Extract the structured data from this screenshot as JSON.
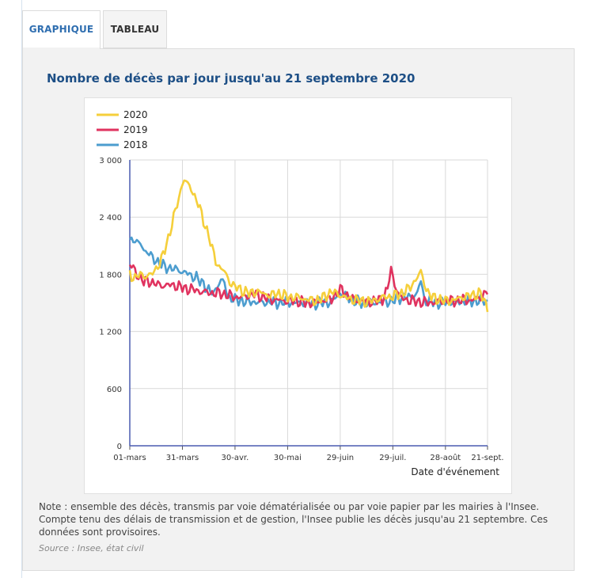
{
  "tabs": [
    {
      "label": "GRAPHIQUE",
      "active": true
    },
    {
      "label": "TABLEAU",
      "active": false
    }
  ],
  "note": "Note : ensemble des décès, transmis par voie dématérialisée ou par voie papier par les mairies à l'Insee. Compte tenu des délais de transmission et de gestion, l'Insee publie les décès jusqu'au 21 septembre. Ces données sont provisoires.",
  "source": "Source : Insee, état civil",
  "chart_data": {
    "type": "line",
    "title": "Nombre de décès par jour jusqu'au 21 septembre 2020",
    "xlabel": "Date d'événement",
    "ylabel": "",
    "ylim": [
      0,
      3000
    ],
    "yticks": [
      0,
      600,
      1200,
      1800,
      2400,
      3000
    ],
    "ytick_labels": [
      "0",
      "600",
      "1 200",
      "1 800",
      "2 400",
      "3 000"
    ],
    "x_day_range": [
      0,
      204
    ],
    "xticks": [
      {
        "day": 0,
        "label": "01-mars"
      },
      {
        "day": 30,
        "label": "31-mars"
      },
      {
        "day": 60,
        "label": "30-avr."
      },
      {
        "day": 90,
        "label": "30-mai"
      },
      {
        "day": 120,
        "label": "29-juin"
      },
      {
        "day": 150,
        "label": "29-juil."
      },
      {
        "day": 180,
        "label": "28-août"
      },
      {
        "day": 204,
        "label": "21-sept."
      }
    ],
    "legend_position": "top-left",
    "series": [
      {
        "name": "2020",
        "color": "#f5cf3b",
        "points": [
          [
            0,
            1800
          ],
          [
            3,
            1760
          ],
          [
            6,
            1800
          ],
          [
            9,
            1780
          ],
          [
            12,
            1790
          ],
          [
            15,
            1860
          ],
          [
            18,
            1950
          ],
          [
            20,
            2060
          ],
          [
            22,
            2180
          ],
          [
            24,
            2330
          ],
          [
            26,
            2460
          ],
          [
            28,
            2600
          ],
          [
            30,
            2760
          ],
          [
            31,
            2800
          ],
          [
            33,
            2740
          ],
          [
            35,
            2700
          ],
          [
            37,
            2620
          ],
          [
            39,
            2540
          ],
          [
            41,
            2420
          ],
          [
            43,
            2310
          ],
          [
            45,
            2210
          ],
          [
            47,
            2060
          ],
          [
            49,
            1940
          ],
          [
            51,
            1880
          ],
          [
            53,
            1850
          ],
          [
            55,
            1790
          ],
          [
            57,
            1720
          ],
          [
            60,
            1670
          ],
          [
            64,
            1630
          ],
          [
            68,
            1600
          ],
          [
            72,
            1620
          ],
          [
            76,
            1600
          ],
          [
            80,
            1580
          ],
          [
            85,
            1600
          ],
          [
            90,
            1560
          ],
          [
            95,
            1560
          ],
          [
            100,
            1540
          ],
          [
            105,
            1520
          ],
          [
            110,
            1550
          ],
          [
            115,
            1620
          ],
          [
            120,
            1580
          ],
          [
            125,
            1540
          ],
          [
            130,
            1530
          ],
          [
            135,
            1510
          ],
          [
            140,
            1530
          ],
          [
            145,
            1560
          ],
          [
            150,
            1570
          ],
          [
            155,
            1600
          ],
          [
            160,
            1660
          ],
          [
            163,
            1750
          ],
          [
            166,
            1820
          ],
          [
            169,
            1650
          ],
          [
            172,
            1560
          ],
          [
            176,
            1540
          ],
          [
            180,
            1520
          ],
          [
            185,
            1530
          ],
          [
            190,
            1560
          ],
          [
            195,
            1580
          ],
          [
            200,
            1600
          ],
          [
            204,
            1450
          ]
        ]
      },
      {
        "name": "2019",
        "color": "#e0335f",
        "points": [
          [
            0,
            1900
          ],
          [
            2,
            1860
          ],
          [
            5,
            1780
          ],
          [
            8,
            1720
          ],
          [
            11,
            1730
          ],
          [
            14,
            1700
          ],
          [
            17,
            1690
          ],
          [
            20,
            1680
          ],
          [
            24,
            1690
          ],
          [
            28,
            1670
          ],
          [
            32,
            1650
          ],
          [
            36,
            1640
          ],
          [
            40,
            1620
          ],
          [
            44,
            1610
          ],
          [
            48,
            1600
          ],
          [
            52,
            1600
          ],
          [
            56,
            1580
          ],
          [
            60,
            1560
          ],
          [
            64,
            1560
          ],
          [
            68,
            1580
          ],
          [
            72,
            1590
          ],
          [
            76,
            1560
          ],
          [
            80,
            1540
          ],
          [
            85,
            1530
          ],
          [
            90,
            1520
          ],
          [
            95,
            1520
          ],
          [
            100,
            1500
          ],
          [
            105,
            1500
          ],
          [
            110,
            1520
          ],
          [
            115,
            1540
          ],
          [
            118,
            1600
          ],
          [
            121,
            1640
          ],
          [
            124,
            1580
          ],
          [
            128,
            1530
          ],
          [
            132,
            1520
          ],
          [
            136,
            1510
          ],
          [
            140,
            1520
          ],
          [
            144,
            1540
          ],
          [
            147,
            1650
          ],
          [
            149,
            1850
          ],
          [
            151,
            1700
          ],
          [
            154,
            1560
          ],
          [
            158,
            1530
          ],
          [
            162,
            1520
          ],
          [
            166,
            1510
          ],
          [
            170,
            1500
          ],
          [
            175,
            1510
          ],
          [
            180,
            1520
          ],
          [
            185,
            1520
          ],
          [
            190,
            1530
          ],
          [
            195,
            1530
          ],
          [
            200,
            1560
          ],
          [
            204,
            1620
          ]
        ]
      },
      {
        "name": "2018",
        "color": "#4c9dcf",
        "points": [
          [
            0,
            2150
          ],
          [
            2,
            2180
          ],
          [
            4,
            2120
          ],
          [
            6,
            2130
          ],
          [
            8,
            2060
          ],
          [
            10,
            2030
          ],
          [
            12,
            1990
          ],
          [
            14,
            1960
          ],
          [
            16,
            1930
          ],
          [
            18,
            1900
          ],
          [
            20,
            1880
          ],
          [
            22,
            1870
          ],
          [
            24,
            1860
          ],
          [
            26,
            1850
          ],
          [
            28,
            1850
          ],
          [
            30,
            1820
          ],
          [
            32,
            1820
          ],
          [
            34,
            1790
          ],
          [
            36,
            1780
          ],
          [
            38,
            1770
          ],
          [
            40,
            1720
          ],
          [
            42,
            1700
          ],
          [
            44,
            1660
          ],
          [
            46,
            1610
          ],
          [
            48,
            1600
          ],
          [
            50,
            1690
          ],
          [
            52,
            1740
          ],
          [
            54,
            1700
          ],
          [
            56,
            1560
          ],
          [
            58,
            1550
          ],
          [
            60,
            1530
          ],
          [
            64,
            1520
          ],
          [
            68,
            1510
          ],
          [
            72,
            1510
          ],
          [
            76,
            1500
          ],
          [
            80,
            1510
          ],
          [
            85,
            1500
          ],
          [
            90,
            1510
          ],
          [
            95,
            1500
          ],
          [
            100,
            1500
          ],
          [
            105,
            1490
          ],
          [
            110,
            1500
          ],
          [
            115,
            1510
          ],
          [
            120,
            1600
          ],
          [
            124,
            1560
          ],
          [
            128,
            1520
          ],
          [
            132,
            1500
          ],
          [
            136,
            1500
          ],
          [
            140,
            1500
          ],
          [
            145,
            1510
          ],
          [
            150,
            1520
          ],
          [
            155,
            1560
          ],
          [
            160,
            1560
          ],
          [
            164,
            1600
          ],
          [
            166,
            1740
          ],
          [
            168,
            1530
          ],
          [
            172,
            1510
          ],
          [
            176,
            1500
          ],
          [
            180,
            1500
          ],
          [
            185,
            1510
          ],
          [
            190,
            1510
          ],
          [
            195,
            1520
          ],
          [
            200,
            1520
          ],
          [
            204,
            1520
          ]
        ]
      }
    ]
  }
}
